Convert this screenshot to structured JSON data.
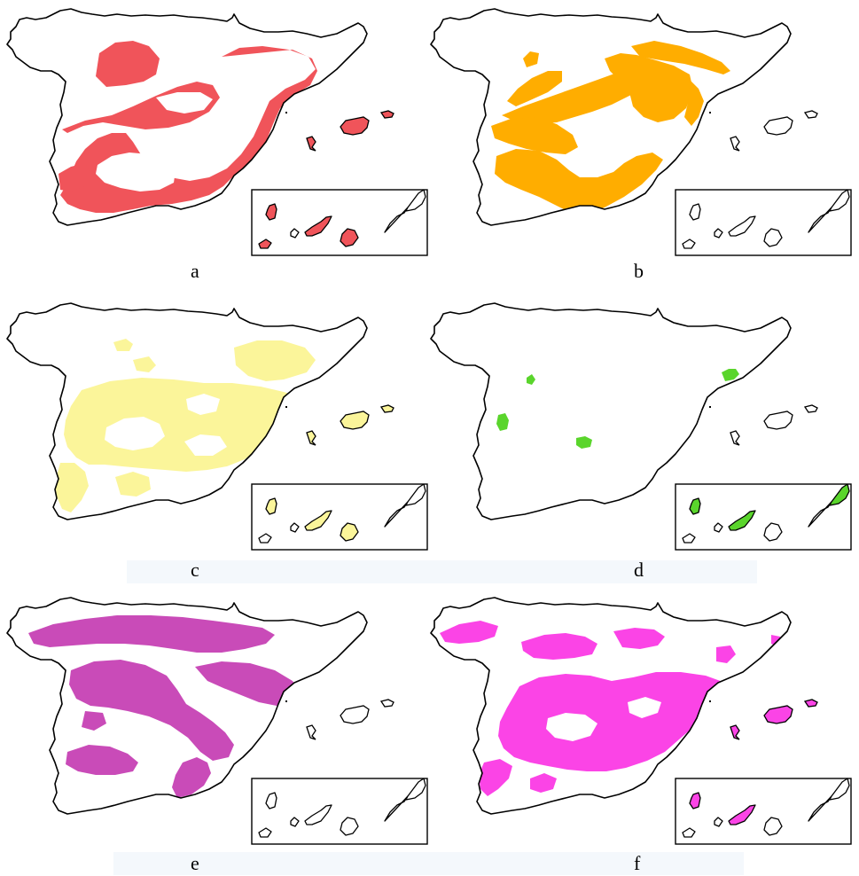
{
  "figure": {
    "panels": [
      {
        "label": "a",
        "fill": "#f0545a",
        "canary_fill": "#f0545a"
      },
      {
        "label": "b",
        "fill": "#ffad00",
        "canary_fill": null
      },
      {
        "label": "c",
        "fill": "#fbf59a",
        "canary_fill": "#fbf59a"
      },
      {
        "label": "d",
        "fill": "#5ad52c",
        "canary_fill": "#5ad52c"
      },
      {
        "label": "e",
        "fill": "#c94bb8",
        "canary_fill": null
      },
      {
        "label": "f",
        "fill": "#fb44e6",
        "canary_fill": "#fb44e6"
      }
    ]
  }
}
